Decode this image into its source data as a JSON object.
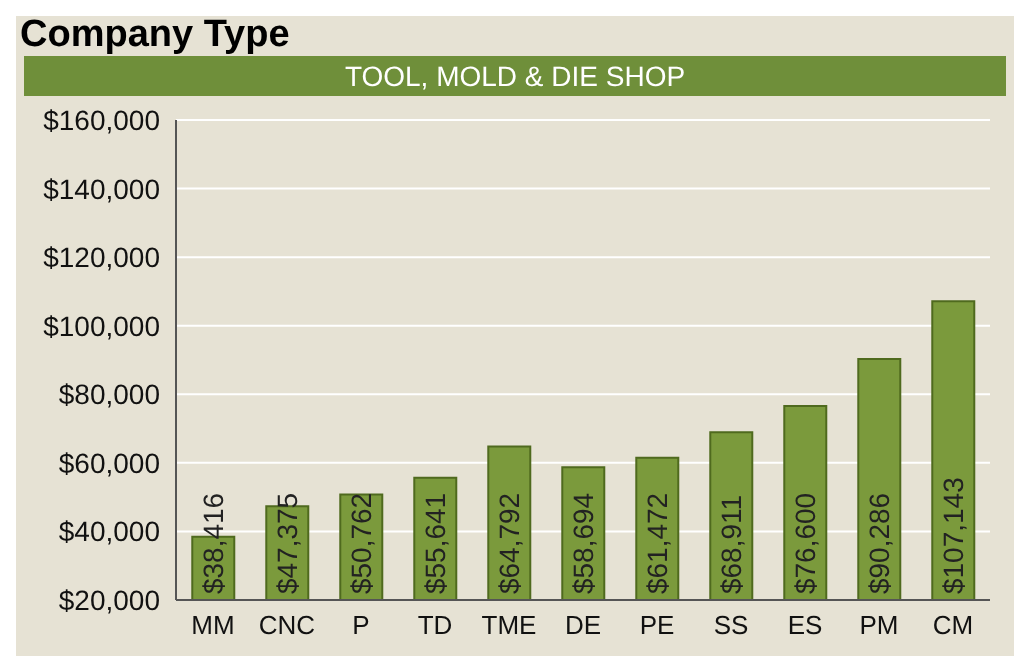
{
  "chart_data": {
    "type": "bar",
    "title": "Company Type",
    "subtitle": "TOOL, MOLD & DIE SHOP",
    "categories": [
      "MM",
      "CNC",
      "P",
      "TD",
      "TME",
      "DE",
      "PE",
      "SS",
      "ES",
      "PM",
      "CM"
    ],
    "values": [
      38416,
      47375,
      50762,
      55641,
      64792,
      58694,
      61472,
      68911,
      76600,
      90286,
      107143
    ],
    "value_labels": [
      "$38,416",
      "$47,375",
      "$50,762",
      "$55,641",
      "$64,792",
      "$58,694",
      "$61,472",
      "$68,911",
      "$76,600",
      "$90,286",
      "$107,143"
    ],
    "color": "#7b9a3c",
    "ylim": [
      20000,
      160000
    ],
    "yticks": [
      {
        "value": 20000,
        "label": "$20,000"
      },
      {
        "value": 40000,
        "label": "$40,000"
      },
      {
        "value": 60000,
        "label": "$60,000"
      },
      {
        "value": 80000,
        "label": "$80,000"
      },
      {
        "value": 100000,
        "label": "$100,000"
      },
      {
        "value": 120000,
        "label": "$120,000"
      },
      {
        "value": 140000,
        "label": "$140,000"
      },
      {
        "value": 160000,
        "label": "$160,000"
      }
    ],
    "grid": "y"
  }
}
